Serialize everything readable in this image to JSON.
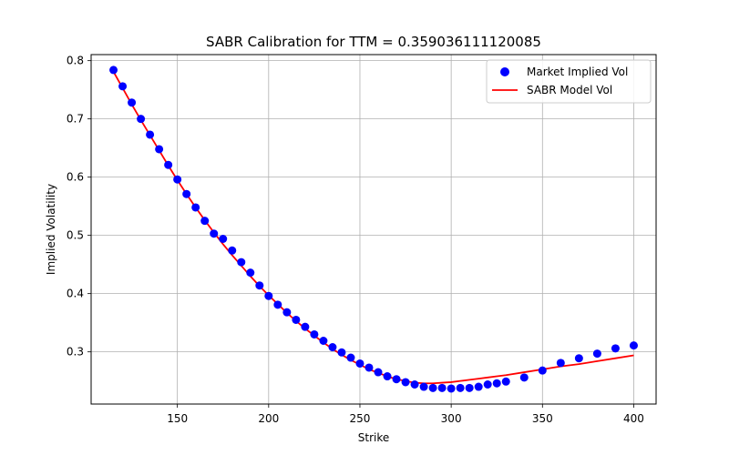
{
  "chart_data": {
    "type": "scatter",
    "title": "SABR Calibration for TTM = 0.359036111120085",
    "xlabel": "Strike",
    "ylabel": "Implied Volatility",
    "xlim": [
      102.75,
      412.25
    ],
    "ylim": [
      0.2104,
      0.8104
    ],
    "xticks": [
      150,
      200,
      250,
      300,
      350,
      400
    ],
    "yticks": [
      0.3,
      0.4,
      0.5,
      0.6,
      0.7,
      0.8
    ],
    "xtick_labels": [
      "150",
      "200",
      "250",
      "300",
      "350",
      "400"
    ],
    "ytick_labels": [
      "0.3",
      "0.4",
      "0.5",
      "0.6",
      "0.7",
      "0.8"
    ],
    "grid": true,
    "legend_position": "top-right",
    "series": [
      {
        "name": "Market Implied Vol",
        "kind": "scatter",
        "color": "#0000ff",
        "x": [
          115,
          120,
          125,
          130,
          135,
          140,
          145,
          150,
          155,
          160,
          165,
          170,
          175,
          180,
          185,
          190,
          195,
          200,
          205,
          210,
          215,
          220,
          225,
          230,
          235,
          240,
          245,
          250,
          255,
          260,
          265,
          270,
          275,
          280,
          285,
          290,
          295,
          300,
          305,
          310,
          315,
          320,
          325,
          330,
          340,
          350,
          360,
          370,
          380,
          390,
          400
        ],
        "y": [
          0.784,
          0.756,
          0.728,
          0.7,
          0.673,
          0.648,
          0.621,
          0.596,
          0.571,
          0.548,
          0.525,
          0.503,
          0.494,
          0.474,
          0.454,
          0.436,
          0.414,
          0.396,
          0.381,
          0.368,
          0.355,
          0.343,
          0.33,
          0.319,
          0.308,
          0.299,
          0.29,
          0.28,
          0.273,
          0.265,
          0.258,
          0.253,
          0.248,
          0.244,
          0.24,
          0.238,
          0.238,
          0.237,
          0.238,
          0.238,
          0.24,
          0.244,
          0.246,
          0.249,
          0.256,
          0.268,
          0.281,
          0.289,
          0.297,
          0.306,
          0.311
        ]
      },
      {
        "name": "SABR Model Vol",
        "kind": "line",
        "color": "#ff0000",
        "x": [
          115,
          120,
          125,
          130,
          135,
          140,
          145,
          150,
          155,
          160,
          165,
          170,
          175,
          180,
          185,
          190,
          195,
          200,
          205,
          210,
          215,
          220,
          225,
          230,
          235,
          240,
          245,
          250,
          255,
          260,
          265,
          270,
          275,
          280,
          285,
          290,
          295,
          300,
          305,
          310,
          315,
          320,
          325,
          330,
          340,
          350,
          360,
          370,
          380,
          390,
          400
        ],
        "y": [
          0.781,
          0.753,
          0.725,
          0.698,
          0.672,
          0.646,
          0.62,
          0.595,
          0.571,
          0.548,
          0.526,
          0.505,
          0.485,
          0.466,
          0.448,
          0.43,
          0.413,
          0.397,
          0.382,
          0.367,
          0.353,
          0.34,
          0.328,
          0.316,
          0.305,
          0.295,
          0.286,
          0.278,
          0.27,
          0.264,
          0.258,
          0.253,
          0.25,
          0.247,
          0.246,
          0.246,
          0.247,
          0.248,
          0.25,
          0.252,
          0.254,
          0.256,
          0.258,
          0.26,
          0.265,
          0.27,
          0.275,
          0.279,
          0.284,
          0.289,
          0.294
        ]
      }
    ]
  }
}
